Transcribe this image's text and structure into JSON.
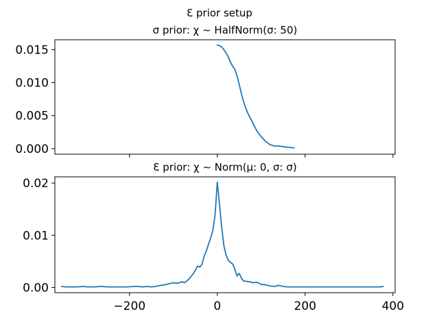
{
  "figure": {
    "suptitle": "Ɛ prior setup"
  },
  "colors": {
    "line": "#1f77b4",
    "axes": "#000000",
    "background": "#ffffff"
  },
  "chart_data": [
    {
      "type": "line",
      "title": "σ prior: χ ~ HalfNorm(σ: 50)",
      "xlabel": "",
      "ylabel": "",
      "xlim": [
        -370,
        405
      ],
      "ylim": [
        -0.00085,
        0.0165
      ],
      "x_ticks": [
        -200,
        0,
        200,
        400
      ],
      "x_tick_labels_visible": false,
      "y_ticks": [
        0.0,
        0.005,
        0.01,
        0.015
      ],
      "y_tick_labels": [
        "0.000",
        "0.005",
        "0.010",
        "0.015"
      ],
      "grid": false,
      "series": [
        {
          "x": [
            0,
            5,
            10,
            15,
            20,
            25,
            30,
            35,
            40,
            45,
            50,
            55,
            60,
            65,
            70,
            80,
            90,
            100,
            110,
            120,
            130,
            140,
            150,
            160,
            170,
            175
          ],
          "y": [
            0.0157,
            0.0156,
            0.0154,
            0.015,
            0.0145,
            0.0139,
            0.0131,
            0.0125,
            0.012,
            0.011,
            0.0097,
            0.0083,
            0.0071,
            0.0061,
            0.0053,
            0.004,
            0.0027,
            0.0018,
            0.0011,
            0.0006,
            0.0004,
            0.0004,
            0.0003,
            0.0002,
            0.00015,
            0.0001
          ]
        }
      ]
    },
    {
      "type": "line",
      "title": "Ɛ prior: χ ~ Norm(μ: 0, σ: σ)",
      "xlabel": "",
      "ylabel": "",
      "xlim": [
        -370,
        405
      ],
      "ylim": [
        -0.001,
        0.0212
      ],
      "x_ticks": [
        -200,
        0,
        200,
        400
      ],
      "x_tick_labels": [
        "−200",
        "0",
        "200",
        "400"
      ],
      "y_ticks": [
        0.0,
        0.01,
        0.02
      ],
      "y_tick_labels": [
        "0.00",
        "0.01",
        "0.02"
      ],
      "grid": false,
      "series": [
        {
          "x": [
            -355,
            -345,
            -335,
            -320,
            -305,
            -295,
            -280,
            -265,
            -250,
            -235,
            -220,
            -205,
            -190,
            -180,
            -170,
            -160,
            -150,
            -140,
            -130,
            -120,
            -110,
            -100,
            -90,
            -80,
            -75,
            -70,
            -65,
            -60,
            -55,
            -50,
            -45,
            -40,
            -35,
            -30,
            -25,
            -20,
            -15,
            -10,
            -5,
            0,
            5,
            10,
            15,
            20,
            25,
            30,
            35,
            40,
            45,
            50,
            55,
            60,
            65,
            70,
            75,
            80,
            90,
            100,
            110,
            120,
            130,
            140,
            150,
            160,
            170,
            185,
            200,
            220,
            240,
            260,
            280,
            300,
            320,
            340,
            360,
            372,
            378
          ],
          "y": [
            0.0002,
            0.0001,
            0.0001,
            0.0001,
            0.0002,
            0.0001,
            0.0001,
            0.0002,
            0.0001,
            0.0001,
            0.0001,
            0.0001,
            0.0002,
            0.0002,
            0.0001,
            0.0002,
            0.0001,
            0.0002,
            0.0004,
            0.0005,
            0.0007,
            0.0009,
            0.0008,
            0.0011,
            0.0009,
            0.0012,
            0.0016,
            0.0021,
            0.0026,
            0.0033,
            0.0041,
            0.0039,
            0.0044,
            0.006,
            0.007,
            0.0083,
            0.0095,
            0.011,
            0.014,
            0.0202,
            0.016,
            0.0115,
            0.008,
            0.0062,
            0.0052,
            0.0048,
            0.0045,
            0.0035,
            0.0022,
            0.0027,
            0.0018,
            0.0012,
            0.0012,
            0.0011,
            0.0011,
            0.0009,
            0.001,
            0.0006,
            0.0005,
            0.0003,
            0.0002,
            0.0004,
            0.0002,
            0.0001,
            0.0001,
            0.0001,
            0.0001,
            0.0001,
            0.0001,
            0.0001,
            0.0001,
            0.0001,
            0.0001,
            0.0001,
            0.0001,
            0.0001,
            0.0002
          ]
        }
      ]
    }
  ]
}
